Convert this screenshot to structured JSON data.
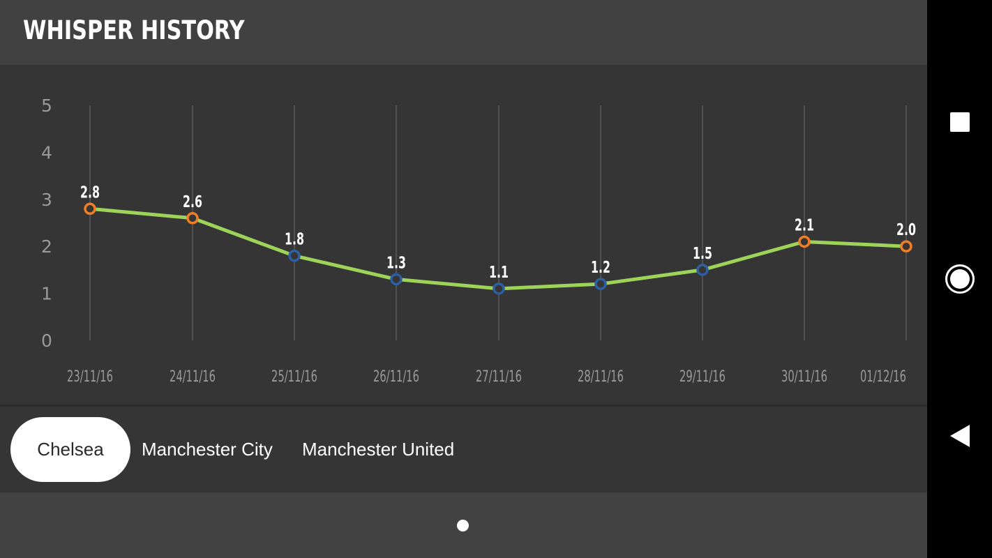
{
  "header": {
    "title": "WHISPER HISTORY"
  },
  "chart_data": {
    "type": "line",
    "x": [
      "23/11/16",
      "24/11/16",
      "25/11/16",
      "26/11/16",
      "27/11/16",
      "28/11/16",
      "29/11/16",
      "30/11/16",
      "01/12/16"
    ],
    "series": [
      {
        "values": [
          2.8,
          2.6,
          1.8,
          1.3,
          1.1,
          1.2,
          1.5,
          2.1,
          2.0
        ]
      }
    ],
    "data_labels": [
      "2.8",
      "2.6",
      "1.8",
      "1.3",
      "1.1",
      "1.2",
      "1.5",
      "2.1",
      "2.0"
    ],
    "point_colors": [
      "#f07e26",
      "#f07e26",
      "#2e5fa3",
      "#2e5fa3",
      "#2e5fa3",
      "#2e5fa3",
      "#2e5fa3",
      "#f07e26",
      "#f07e26"
    ],
    "y_ticks": [
      "0",
      "1",
      "2",
      "3",
      "4",
      "5"
    ],
    "ylim": [
      0,
      5
    ],
    "line_color": "#9ed35a",
    "grid": "vertical",
    "title": "",
    "xlabel": "",
    "ylabel": ""
  },
  "tabs": [
    {
      "label": "Chelsea",
      "active": true
    },
    {
      "label": "Manchester City",
      "active": false
    },
    {
      "label": "Manchester United",
      "active": false
    }
  ],
  "pager": {
    "pages": 1,
    "current": 1
  },
  "navbar": {
    "recent": "recent-apps-icon",
    "home": "home-icon",
    "back": "back-icon"
  }
}
